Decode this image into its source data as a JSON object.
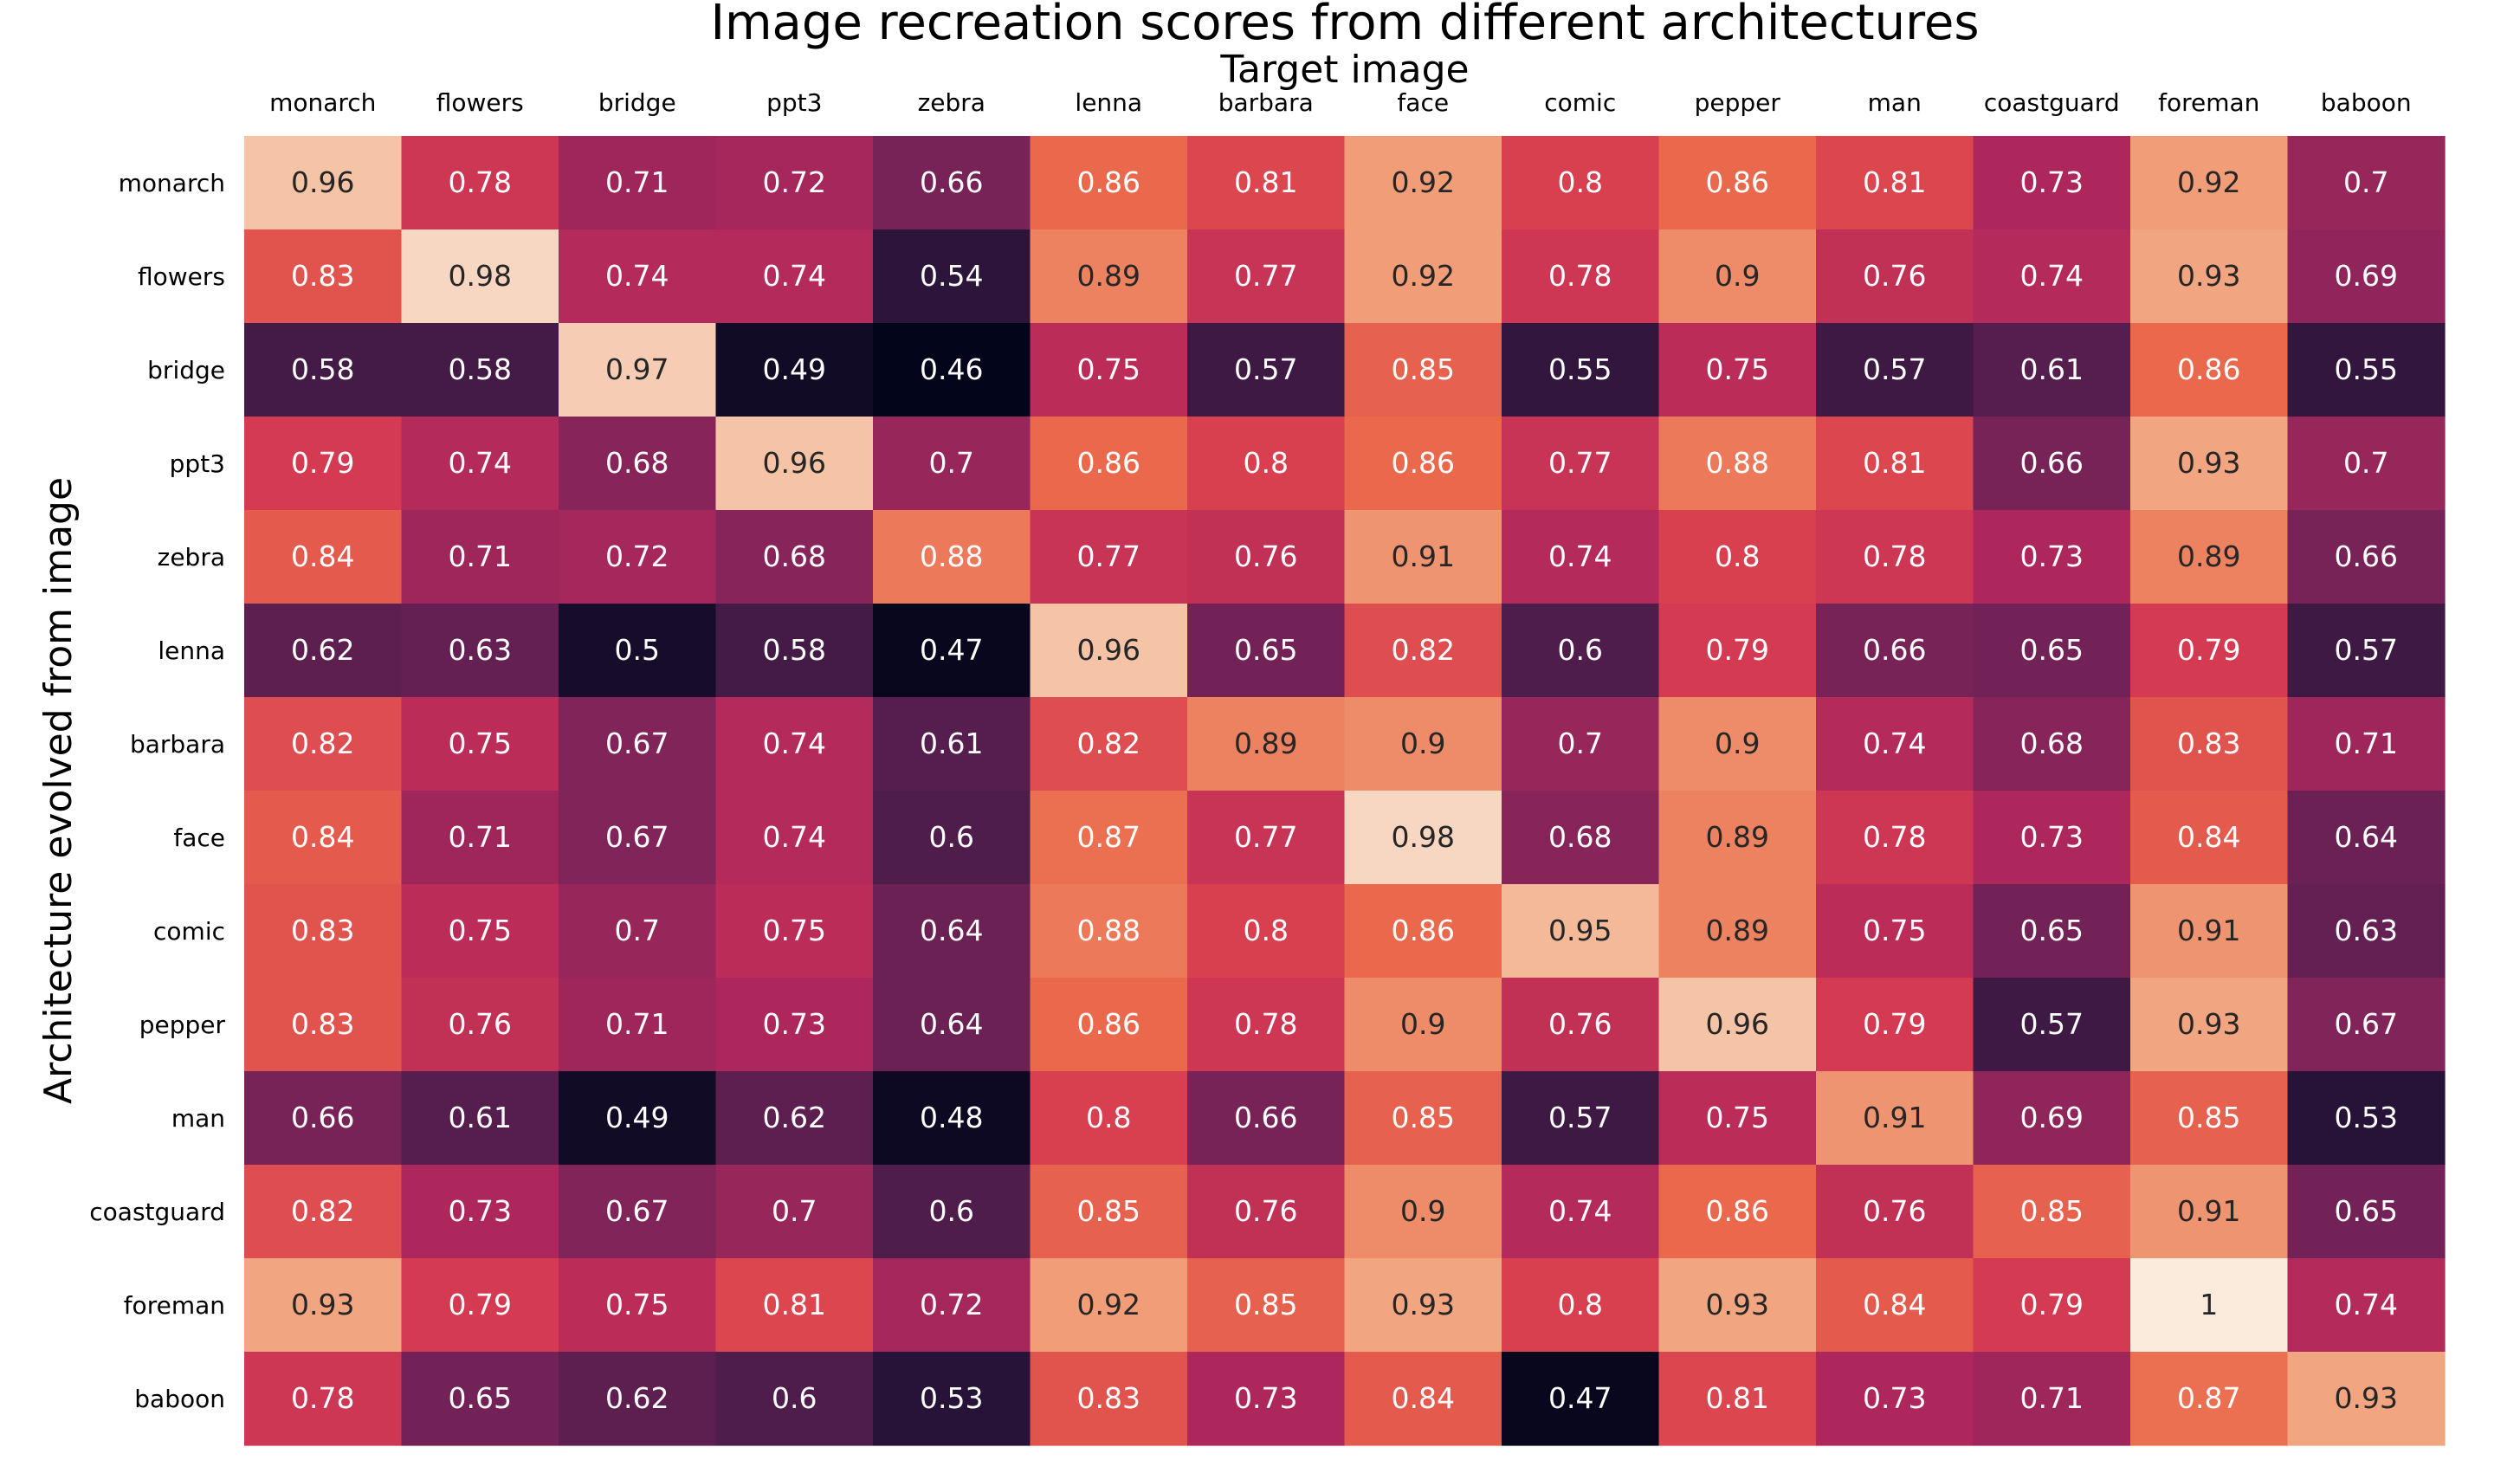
{
  "chart_data": {
    "type": "heatmap",
    "title": "Image recreation scores from different architectures",
    "xlabel": "Target image",
    "ylabel": "Architecture evolved from image",
    "x_categories": [
      "monarch",
      "flowers",
      "bridge",
      "ppt3",
      "zebra",
      "lenna",
      "barbara",
      "face",
      "comic",
      "pepper",
      "man",
      "coastguard",
      "foreman",
      "baboon"
    ],
    "y_categories": [
      "monarch",
      "flowers",
      "bridge",
      "ppt3",
      "zebra",
      "lenna",
      "barbara",
      "face",
      "comic",
      "pepper",
      "man",
      "coastguard",
      "foreman",
      "baboon"
    ],
    "values": [
      [
        0.96,
        0.78,
        0.71,
        0.72,
        0.66,
        0.86,
        0.81,
        0.92,
        0.8,
        0.86,
        0.81,
        0.73,
        0.92,
        0.7
      ],
      [
        0.83,
        0.98,
        0.74,
        0.74,
        0.54,
        0.89,
        0.77,
        0.92,
        0.78,
        0.9,
        0.76,
        0.74,
        0.93,
        0.69
      ],
      [
        0.58,
        0.58,
        0.97,
        0.49,
        0.46,
        0.75,
        0.57,
        0.85,
        0.55,
        0.75,
        0.57,
        0.61,
        0.86,
        0.55
      ],
      [
        0.79,
        0.74,
        0.68,
        0.96,
        0.7,
        0.86,
        0.8,
        0.86,
        0.77,
        0.88,
        0.81,
        0.66,
        0.93,
        0.7
      ],
      [
        0.84,
        0.71,
        0.72,
        0.68,
        0.88,
        0.77,
        0.76,
        0.91,
        0.74,
        0.8,
        0.78,
        0.73,
        0.89,
        0.66
      ],
      [
        0.62,
        0.63,
        0.5,
        0.58,
        0.47,
        0.96,
        0.65,
        0.82,
        0.6,
        0.79,
        0.66,
        0.65,
        0.79,
        0.57
      ],
      [
        0.82,
        0.75,
        0.67,
        0.74,
        0.61,
        0.82,
        0.89,
        0.9,
        0.7,
        0.9,
        0.74,
        0.68,
        0.83,
        0.71
      ],
      [
        0.84,
        0.71,
        0.67,
        0.74,
        0.6,
        0.87,
        0.77,
        0.98,
        0.68,
        0.89,
        0.78,
        0.73,
        0.84,
        0.64
      ],
      [
        0.83,
        0.75,
        0.7,
        0.75,
        0.64,
        0.88,
        0.8,
        0.86,
        0.95,
        0.89,
        0.75,
        0.65,
        0.91,
        0.63
      ],
      [
        0.83,
        0.76,
        0.71,
        0.73,
        0.64,
        0.86,
        0.78,
        0.9,
        0.76,
        0.96,
        0.79,
        0.57,
        0.93,
        0.67
      ],
      [
        0.66,
        0.61,
        0.49,
        0.62,
        0.48,
        0.8,
        0.66,
        0.85,
        0.57,
        0.75,
        0.91,
        0.69,
        0.85,
        0.53
      ],
      [
        0.82,
        0.73,
        0.67,
        0.7,
        0.6,
        0.85,
        0.76,
        0.9,
        0.74,
        0.86,
        0.76,
        0.85,
        0.91,
        0.65
      ],
      [
        0.93,
        0.79,
        0.75,
        0.81,
        0.72,
        0.92,
        0.85,
        0.93,
        0.8,
        0.93,
        0.84,
        0.79,
        1,
        0.74
      ],
      [
        0.78,
        0.65,
        0.62,
        0.6,
        0.53,
        0.83,
        0.73,
        0.84,
        0.47,
        0.81,
        0.73,
        0.71,
        0.87,
        0.93
      ]
    ],
    "value_range": [
      0.46,
      1.0
    ],
    "colormap": "rocket",
    "x_tick_position": "top",
    "grid": false,
    "legend": "none"
  }
}
